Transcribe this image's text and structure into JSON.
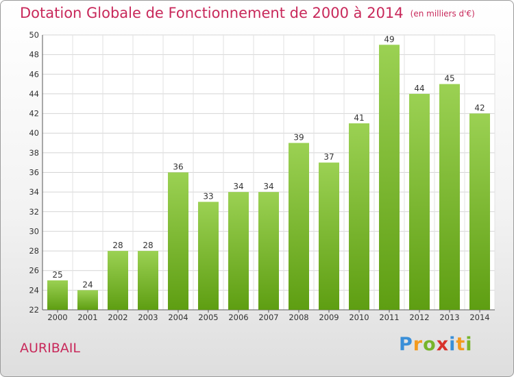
{
  "chart_data": {
    "type": "bar",
    "title": "Dotation Globale de Fonctionnement de 2000 à 2014",
    "subtitle": "(en milliers d'€)",
    "categories": [
      "2000",
      "2001",
      "2002",
      "2003",
      "2004",
      "2005",
      "2006",
      "2007",
      "2008",
      "2009",
      "2010",
      "2011",
      "2012",
      "2013",
      "2014"
    ],
    "values": [
      25,
      24,
      28,
      28,
      36,
      33,
      34,
      34,
      39,
      37,
      41,
      49,
      44,
      45,
      42
    ],
    "ylim": [
      22,
      50
    ],
    "yticks": [
      22,
      24,
      26,
      28,
      30,
      32,
      34,
      36,
      38,
      40,
      42,
      44,
      46,
      48,
      50
    ],
    "grid": true,
    "colors": {
      "bar_top": "#9bd153",
      "bar_bottom": "#5e9e12",
      "title": "#c8285a"
    }
  },
  "place_name": "AURIBAIL",
  "logo": {
    "letters": [
      "P",
      "r",
      "o",
      "x",
      "i",
      "t",
      "i"
    ],
    "colors": [
      "#3a8fd8",
      "#f39a1e",
      "#77b52b",
      "#d8322b",
      "#3a8fd8",
      "#f39a1e",
      "#77b52b"
    ]
  }
}
